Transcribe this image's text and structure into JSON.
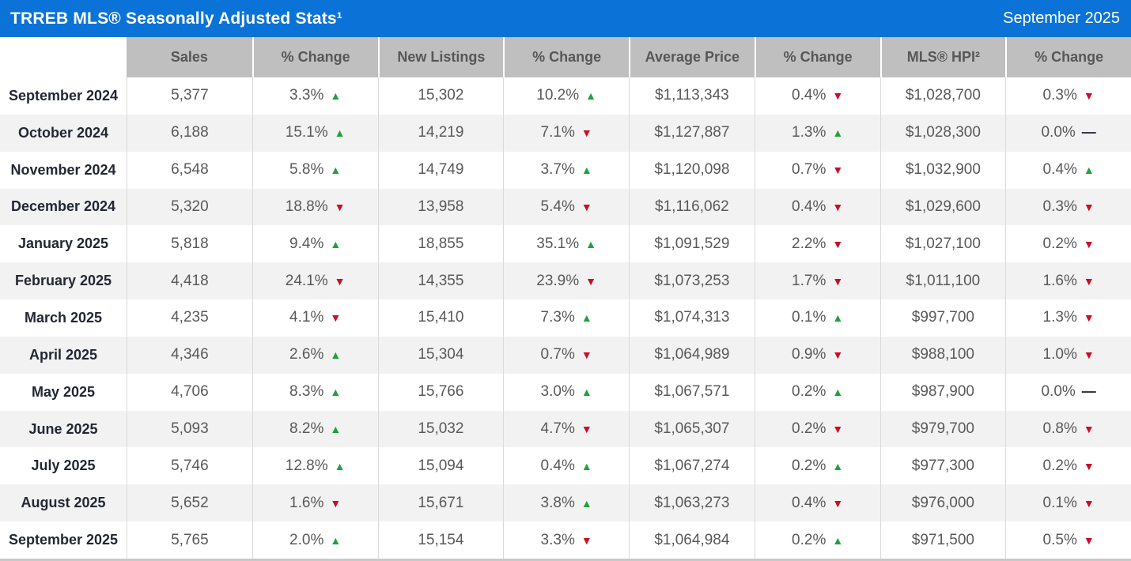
{
  "colors": {
    "title_bar_bg": "#0b73d7",
    "title_text": "#ffffff",
    "header_bg": "#bfbfbf",
    "header_text": "#575757",
    "row_alt_bg": "#f2f2f2",
    "value_text": "#595959",
    "month_text": "#222733",
    "up": "#1fa23c",
    "down": "#cb0d25",
    "flat": "#232a3b"
  },
  "indicators": {
    "up": {
      "glyph": "▲",
      "color": "#1fa23c"
    },
    "down": {
      "glyph": "▼",
      "color": "#cb0d25"
    },
    "flat": {
      "glyph": "—",
      "color": "#232a3b"
    }
  },
  "chart_data": {
    "type": "table",
    "title": "TRREB MLS® Seasonally Adjusted Stats¹",
    "period": "September 2025",
    "columns": [
      "",
      "Sales",
      "% Change",
      "New Listings",
      "% Change",
      "Average Price",
      "% Change",
      "MLS® HPI²",
      "% Change"
    ],
    "rows": [
      {
        "month": "September 2024",
        "cells": [
          {
            "text": "5,377"
          },
          {
            "text": "3.3%",
            "dir": "up"
          },
          {
            "text": "15,302"
          },
          {
            "text": "10.2%",
            "dir": "up"
          },
          {
            "text": "$1,113,343"
          },
          {
            "text": "0.4%",
            "dir": "down"
          },
          {
            "text": "$1,028,700"
          },
          {
            "text": "0.3%",
            "dir": "down"
          }
        ]
      },
      {
        "month": "October 2024",
        "cells": [
          {
            "text": "6,188"
          },
          {
            "text": "15.1%",
            "dir": "up"
          },
          {
            "text": "14,219"
          },
          {
            "text": "7.1%",
            "dir": "down"
          },
          {
            "text": "$1,127,887"
          },
          {
            "text": "1.3%",
            "dir": "up"
          },
          {
            "text": "$1,028,300"
          },
          {
            "text": "0.0%",
            "dir": "flat"
          }
        ]
      },
      {
        "month": "November 2024",
        "cells": [
          {
            "text": "6,548"
          },
          {
            "text": "5.8%",
            "dir": "up"
          },
          {
            "text": "14,749"
          },
          {
            "text": "3.7%",
            "dir": "up"
          },
          {
            "text": "$1,120,098"
          },
          {
            "text": "0.7%",
            "dir": "down"
          },
          {
            "text": "$1,032,900"
          },
          {
            "text": "0.4%",
            "dir": "up"
          }
        ]
      },
      {
        "month": "December 2024",
        "cells": [
          {
            "text": "5,320"
          },
          {
            "text": "18.8%",
            "dir": "down"
          },
          {
            "text": "13,958"
          },
          {
            "text": "5.4%",
            "dir": "down"
          },
          {
            "text": "$1,116,062"
          },
          {
            "text": "0.4%",
            "dir": "down"
          },
          {
            "text": "$1,029,600"
          },
          {
            "text": "0.3%",
            "dir": "down"
          }
        ]
      },
      {
        "month": "January 2025",
        "cells": [
          {
            "text": "5,818"
          },
          {
            "text": "9.4%",
            "dir": "up"
          },
          {
            "text": "18,855"
          },
          {
            "text": "35.1%",
            "dir": "up"
          },
          {
            "text": "$1,091,529"
          },
          {
            "text": "2.2%",
            "dir": "down"
          },
          {
            "text": "$1,027,100"
          },
          {
            "text": "0.2%",
            "dir": "down"
          }
        ]
      },
      {
        "month": "February 2025",
        "cells": [
          {
            "text": "4,418"
          },
          {
            "text": "24.1%",
            "dir": "down"
          },
          {
            "text": "14,355"
          },
          {
            "text": "23.9%",
            "dir": "down"
          },
          {
            "text": "$1,073,253"
          },
          {
            "text": "1.7%",
            "dir": "down"
          },
          {
            "text": "$1,011,100"
          },
          {
            "text": "1.6%",
            "dir": "down"
          }
        ]
      },
      {
        "month": "March 2025",
        "cells": [
          {
            "text": "4,235"
          },
          {
            "text": "4.1%",
            "dir": "down"
          },
          {
            "text": "15,410"
          },
          {
            "text": "7.3%",
            "dir": "up"
          },
          {
            "text": "$1,074,313"
          },
          {
            "text": "0.1%",
            "dir": "up"
          },
          {
            "text": "$997,700"
          },
          {
            "text": "1.3%",
            "dir": "down"
          }
        ]
      },
      {
        "month": "April 2025",
        "cells": [
          {
            "text": "4,346"
          },
          {
            "text": "2.6%",
            "dir": "up"
          },
          {
            "text": "15,304"
          },
          {
            "text": "0.7%",
            "dir": "down"
          },
          {
            "text": "$1,064,989"
          },
          {
            "text": "0.9%",
            "dir": "down"
          },
          {
            "text": "$988,100"
          },
          {
            "text": "1.0%",
            "dir": "down"
          }
        ]
      },
      {
        "month": "May 2025",
        "cells": [
          {
            "text": "4,706"
          },
          {
            "text": "8.3%",
            "dir": "up"
          },
          {
            "text": "15,766"
          },
          {
            "text": "3.0%",
            "dir": "up"
          },
          {
            "text": "$1,067,571"
          },
          {
            "text": "0.2%",
            "dir": "up"
          },
          {
            "text": "$987,900"
          },
          {
            "text": "0.0%",
            "dir": "flat"
          }
        ]
      },
      {
        "month": "June 2025",
        "cells": [
          {
            "text": "5,093"
          },
          {
            "text": "8.2%",
            "dir": "up"
          },
          {
            "text": "15,032"
          },
          {
            "text": "4.7%",
            "dir": "down"
          },
          {
            "text": "$1,065,307"
          },
          {
            "text": "0.2%",
            "dir": "down"
          },
          {
            "text": "$979,700"
          },
          {
            "text": "0.8%",
            "dir": "down"
          }
        ]
      },
      {
        "month": "July 2025",
        "cells": [
          {
            "text": "5,746"
          },
          {
            "text": "12.8%",
            "dir": "up"
          },
          {
            "text": "15,094"
          },
          {
            "text": "0.4%",
            "dir": "up"
          },
          {
            "text": "$1,067,274"
          },
          {
            "text": "0.2%",
            "dir": "up"
          },
          {
            "text": "$977,300"
          },
          {
            "text": "0.2%",
            "dir": "down"
          }
        ]
      },
      {
        "month": "August 2025",
        "cells": [
          {
            "text": "5,652"
          },
          {
            "text": "1.6%",
            "dir": "down"
          },
          {
            "text": "15,671"
          },
          {
            "text": "3.8%",
            "dir": "up"
          },
          {
            "text": "$1,063,273"
          },
          {
            "text": "0.4%",
            "dir": "down"
          },
          {
            "text": "$976,000"
          },
          {
            "text": "0.1%",
            "dir": "down"
          }
        ]
      },
      {
        "month": "September 2025",
        "cells": [
          {
            "text": "5,765"
          },
          {
            "text": "2.0%",
            "dir": "up"
          },
          {
            "text": "15,154"
          },
          {
            "text": "3.3%",
            "dir": "down"
          },
          {
            "text": "$1,064,984"
          },
          {
            "text": "0.2%",
            "dir": "up"
          },
          {
            "text": "$971,500"
          },
          {
            "text": "0.5%",
            "dir": "down"
          }
        ]
      }
    ]
  }
}
